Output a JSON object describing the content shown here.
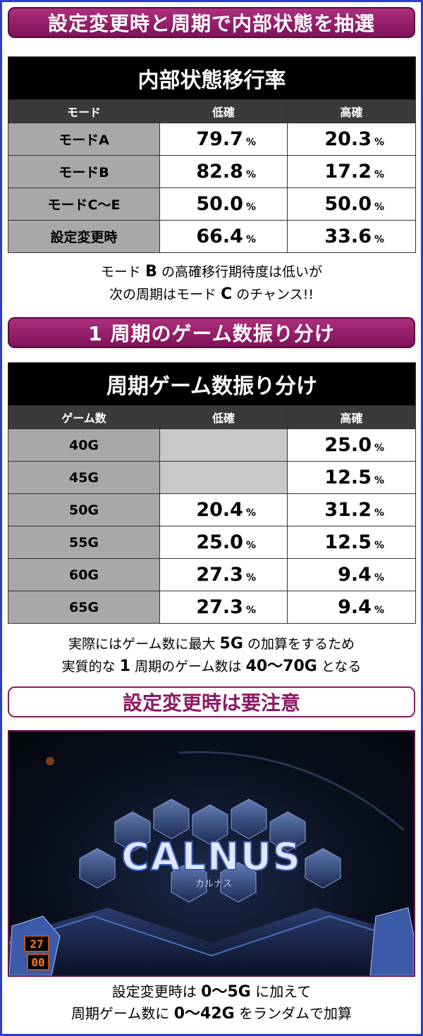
{
  "banner1": "設定変更時と周期で内部状態を抽選",
  "table1": {
    "title": "内部状態移行率",
    "headers": [
      "モード",
      "低確",
      "高確"
    ],
    "rows": [
      {
        "label": "モードA",
        "low": "79.7",
        "high": "20.3"
      },
      {
        "label": "モードB",
        "low": "82.8",
        "high": "17.2"
      },
      {
        "label": "モードC～E",
        "low": "50.0",
        "high": "50.0"
      },
      {
        "label": "設定変更時",
        "low": "66.4",
        "high": "33.6"
      }
    ],
    "unit": "%"
  },
  "note1": {
    "line1_a": "モード",
    "line1_b": "B",
    "line1_c": "の高確移行期待度は低いが",
    "line2_a": "次の周期はモード",
    "line2_b": "C",
    "line2_c": "のチャンス!!"
  },
  "banner2": "1 周期のゲーム数振り分け",
  "table2": {
    "title": "周期ゲーム数振り分け",
    "headers": [
      "ゲーム数",
      "低確",
      "高確"
    ],
    "rows": [
      {
        "label": "40G",
        "low": "",
        "high": "25.0"
      },
      {
        "label": "45G",
        "low": "",
        "high": "12.5"
      },
      {
        "label": "50G",
        "low": "20.4",
        "high": "31.2"
      },
      {
        "label": "55G",
        "low": "25.0",
        "high": "12.5"
      },
      {
        "label": "60G",
        "low": "27.3",
        "high": "9.4"
      },
      {
        "label": "65G",
        "low": "27.3",
        "high": "9.4"
      }
    ],
    "unit": "%"
  },
  "note2": {
    "line1_a": "実際にはゲーム数に最大",
    "line1_b": "5G",
    "line1_c": "の加算をするため",
    "line2_a": "実質的な",
    "line2_b": "1",
    "line2_c": "周期のゲーム数は",
    "line2_d": "40～70G",
    "line2_e": "となる"
  },
  "banner3": "設定変更時は要注意",
  "screen": {
    "logo": "CALNUS",
    "logo_sub": "カルナス",
    "counter_top": "27",
    "counter_bottom": "00"
  },
  "note3": {
    "line1_a": "設定変更時は",
    "line1_b": "0～5G",
    "line1_c": "に加えて",
    "line2_a": "周期ゲーム数に",
    "line2_b": "0～42G",
    "line2_c": "をランダムで加算"
  }
}
